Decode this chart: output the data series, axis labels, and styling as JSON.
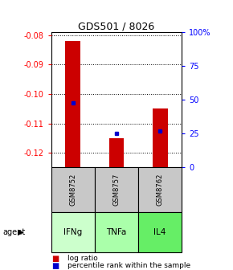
{
  "title": "GDS501 / 8026",
  "samples": [
    "GSM8752",
    "GSM8757",
    "GSM8762"
  ],
  "agents": [
    "IFNg",
    "TNFa",
    "IL4"
  ],
  "log_ratios": [
    -0.082,
    -0.115,
    -0.105
  ],
  "percentile_values_pct": [
    48,
    25,
    27
  ],
  "ylim_left": [
    -0.125,
    -0.079
  ],
  "ylim_right": [
    0,
    100
  ],
  "yticks_left": [
    -0.12,
    -0.11,
    -0.1,
    -0.09,
    -0.08
  ],
  "yticks_right": [
    0,
    25,
    50,
    75,
    100
  ],
  "bar_color": "#cc0000",
  "dot_color": "#0000cc",
  "sample_bg": "#c8c8c8",
  "agent_colors": [
    "#ccffcc",
    "#aaffaa",
    "#66ee66"
  ],
  "bar_width": 0.35
}
